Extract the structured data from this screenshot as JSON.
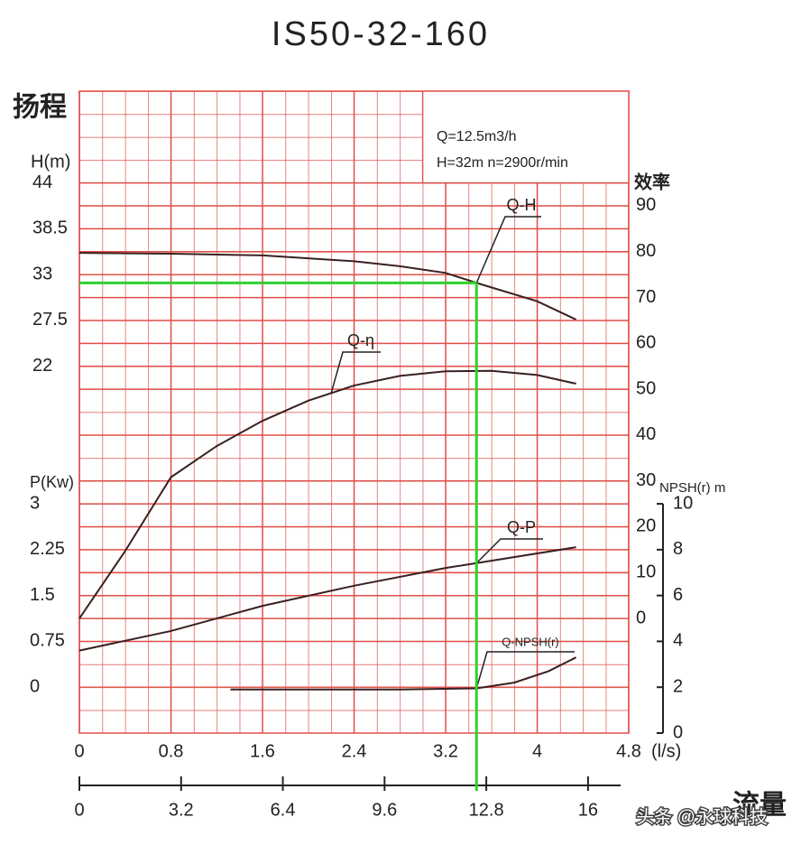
{
  "chart_data": {
    "type": "pump-curve",
    "title": "IS50-32-160",
    "y_title": "扬程",
    "y_label": "H(m)",
    "y2_label": "效率",
    "y3_label": "P(Kw)",
    "y4_label": "NPSH(r) m",
    "x_label": "(l/s)",
    "x2_title": "流量",
    "info": [
      "Q=12.5m3/h",
      "H=32m  n=2900r/min"
    ],
    "watermark": "头条 @永球科技",
    "xlim": [
      0,
      4.8
    ],
    "xticks": [
      0,
      0.8,
      1.6,
      2.4,
      3.2,
      4,
      4.8
    ],
    "x2lim": [
      0,
      17.28
    ],
    "x2ticks": [
      0,
      3.2,
      6.4,
      9.6,
      12.8,
      16
    ],
    "ylim": [
      -22,
      55
    ],
    "yticks": [
      44,
      38.5,
      33,
      27.5,
      22
    ],
    "y2lim": [
      -25,
      115
    ],
    "y2ticks": [
      0,
      10,
      20,
      30,
      40,
      50,
      60,
      70,
      80,
      90
    ],
    "y3lim": [
      -0.75,
      9.75
    ],
    "y3ticks": [
      0,
      0.75,
      1.5,
      2.25,
      3
    ],
    "y4lim": [
      0,
      28
    ],
    "y4ticks": [
      0,
      2,
      4,
      6,
      8,
      10
    ],
    "grid": true,
    "grid_color": "#e0504a",
    "series": [
      {
        "name": "Q-H",
        "axis": "y",
        "color": "#3a2020",
        "x": [
          0,
          0.8,
          1.6,
          2.4,
          2.8,
          3.2,
          3.47,
          4.0,
          4.34
        ],
        "values": [
          35.6,
          35.5,
          35.3,
          34.6,
          34,
          33.2,
          32,
          29.8,
          27.6
        ]
      },
      {
        "name": "Q-η",
        "axis": "y2",
        "color": "#3a2020",
        "x": [
          0,
          0.4,
          0.8,
          1.2,
          1.6,
          2.0,
          2.4,
          2.8,
          3.2,
          3.6,
          4.0,
          4.34
        ],
        "values": [
          0,
          14.7,
          30.8,
          37.6,
          43.1,
          47.5,
          50.8,
          52.9,
          53.9,
          54,
          53.1,
          51.2
        ]
      },
      {
        "name": "Q-P",
        "axis": "y3",
        "color": "#3a2020",
        "x": [
          0,
          0.8,
          1.6,
          2.4,
          3.2,
          3.47,
          4.34
        ],
        "values": [
          0.6,
          0.92,
          1.33,
          1.66,
          1.95,
          2.03,
          2.29
        ]
      },
      {
        "name": "Q-NPSH(r)",
        "axis": "y4",
        "color": "#3a2020",
        "x": [
          1.32,
          2.0,
          2.8,
          3.47,
          3.8,
          4.1,
          4.34
        ],
        "values": [
          1.9,
          1.9,
          1.9,
          1.95,
          2.2,
          2.7,
          3.3
        ]
      }
    ],
    "design_point": {
      "x": 3.47,
      "y": 32,
      "color": "#2fd12f"
    }
  }
}
